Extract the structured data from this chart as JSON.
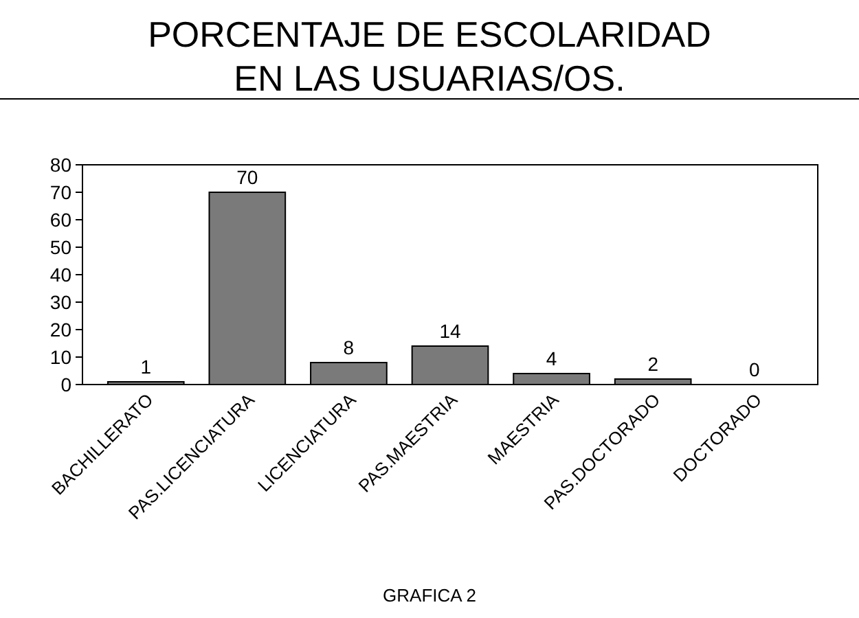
{
  "chart_data": {
    "type": "bar",
    "title": "PORCENTAJE DE ESCOLARIDAD EN LAS USUARIAS/OS.",
    "categories": [
      "BACHILLERATO",
      "PAS.LICENCIATURA",
      "LICENCIATURA",
      "PAS.MAESTRIA",
      "MAESTRIA",
      "PAS.DOCTORADO",
      "DOCTORADO"
    ],
    "values": [
      1,
      70,
      8,
      14,
      4,
      2,
      0
    ],
    "color": "#7a7a7a",
    "ylim": [
      0,
      80
    ],
    "yticks": [
      0,
      10,
      20,
      30,
      40,
      50,
      60,
      70,
      80
    ],
    "grid": false,
    "data_labels": true,
    "annotations": [
      "GRAFICA 2"
    ]
  }
}
